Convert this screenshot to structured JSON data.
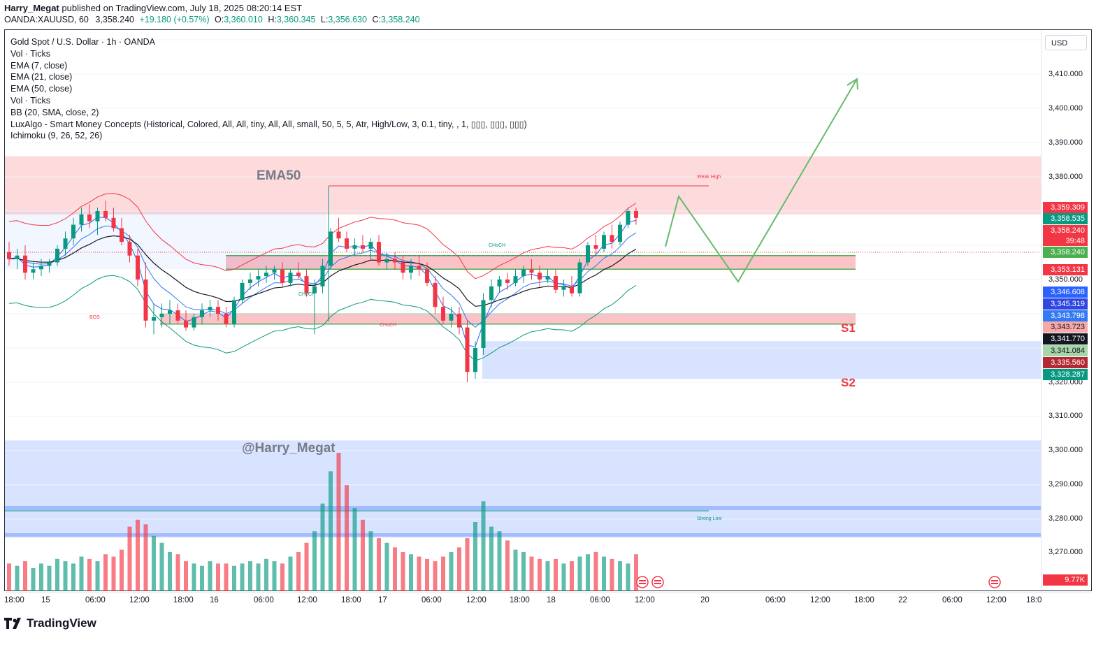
{
  "header": {
    "author": "Harry_Megat",
    "published_text": " published on TradingView.com, July 18, 2025 08:20:14 EST",
    "symbol": "OANDA:XAUUSD, 60",
    "last": "3,358.240",
    "change": "+19.180 (+0.57%)",
    "open_label": "O:",
    "open": "3,360.010",
    "high_label": "H:",
    "high": "3,360.345",
    "low_label": "L:",
    "low": "3,356.630",
    "close_label": "C:",
    "close": "3,358.240"
  },
  "legend": {
    "title": "Gold Spot / U.S. Dollar · 1h · OANDA",
    "lines": [
      "Vol · Ticks",
      "EMA (7, close)",
      "EMA (21, close)",
      "EMA (50, close)",
      "Vol · Ticks",
      "BB (20, SMA, close, 2)",
      "LuxAlgo - Smart Money Concepts (Historical, Colored, All, All, tiny, All, All, small, 50, 5, 5, Atr, High/Low, 3, 0.1, tiny, , 1, ▯▯▯, ▯▯▯, ▯▯▯)",
      "Ichimoku (9, 26, 52, 26)"
    ]
  },
  "annotations": {
    "ema50": "EMA50",
    "watermark": "@Harry_Megat",
    "s1": "S1",
    "s2": "S2",
    "weak_high": "Weak High",
    "strong_low": "Strong Low",
    "choch1": "CHoCH",
    "choch2": "CHoCH",
    "choch3": "CHoCH",
    "bos": "BOS"
  },
  "axis": {
    "currency": "USD",
    "price_ticks": [
      "3,410.000",
      "3,400.000",
      "3,390.000",
      "3,380.000",
      "3,350.000",
      "3,320.000",
      "3,310.000",
      "3,300.000",
      "3,290.000",
      "3,280.000",
      "3,270.000"
    ],
    "time_ticks": [
      "18:00",
      "15",
      "06:00",
      "12:00",
      "18:00",
      "16",
      "06:00",
      "12:00",
      "18:00",
      "17",
      "06:00",
      "12:00",
      "18:00",
      "18",
      "06:00",
      "12:00",
      "20",
      "06:00",
      "12:00",
      "18:00",
      "22",
      "06:00",
      "12:00",
      "18:0"
    ]
  },
  "price_tags": [
    {
      "value": "3,359.309",
      "color": "#f23645"
    },
    {
      "value": "3,358.535",
      "color": "#089981"
    },
    {
      "value": "3,358.240",
      "color": "#f23645"
    },
    {
      "value": "39:48",
      "color": "#f23645"
    },
    {
      "value": "3,358.240",
      "color": "#4caf50"
    },
    {
      "value": "3,353.131",
      "color": "#f23645"
    },
    {
      "value": "3,346.608",
      "color": "#2962ff"
    },
    {
      "value": "3,345.319",
      "color": "#2f47e0"
    },
    {
      "value": "3,343.798",
      "color": "#3179f5"
    },
    {
      "value": "3,343.723",
      "color": "#f7a9a8"
    },
    {
      "value": "3,341.770",
      "color": "#131722"
    },
    {
      "value": "3,341.084",
      "color": "#a5d6a7"
    },
    {
      "value": "3,335.560",
      "color": "#b22833"
    },
    {
      "value": "3,328.287",
      "color": "#089981"
    },
    {
      "value": "9.77K",
      "color": "#f23645"
    }
  ],
  "footer": {
    "brand": "TradingView"
  },
  "chart_data": {
    "type": "candlestick",
    "y_range": [
      3305,
      3420
    ],
    "candles_ohlc": [
      [
        3348,
        3351,
        3344,
        3346
      ],
      [
        3346,
        3349,
        3343,
        3347
      ],
      [
        3347,
        3350,
        3340,
        3342
      ],
      [
        3342,
        3345,
        3340,
        3343
      ],
      [
        3343,
        3346,
        3341,
        3344
      ],
      [
        3344,
        3346,
        3342,
        3345
      ],
      [
        3345,
        3350,
        3344,
        3349
      ],
      [
        3349,
        3354,
        3347,
        3352
      ],
      [
        3352,
        3358,
        3350,
        3356
      ],
      [
        3356,
        3361,
        3354,
        3359
      ],
      [
        3359,
        3362,
        3355,
        3357
      ],
      [
        3357,
        3361,
        3353,
        3360
      ],
      [
        3360,
        3363,
        3357,
        3358
      ],
      [
        3358,
        3361,
        3354,
        3355
      ],
      [
        3355,
        3358,
        3350,
        3351
      ],
      [
        3351,
        3353,
        3345,
        3347
      ],
      [
        3347,
        3349,
        3338,
        3340
      ],
      [
        3340,
        3345,
        3326,
        3328
      ],
      [
        3328,
        3333,
        3324,
        3329
      ],
      [
        3329,
        3333,
        3326,
        3330
      ],
      [
        3330,
        3334,
        3327,
        3331
      ],
      [
        3331,
        3333,
        3327,
        3328
      ],
      [
        3328,
        3331,
        3325,
        3326
      ],
      [
        3326,
        3330,
        3325,
        3329
      ],
      [
        3329,
        3333,
        3327,
        3331
      ],
      [
        3331,
        3334,
        3329,
        3332
      ],
      [
        3332,
        3334,
        3328,
        3330
      ],
      [
        3330,
        3332,
        3326,
        3327
      ],
      [
        3327,
        3335,
        3326,
        3334
      ],
      [
        3334,
        3340,
        3333,
        3339
      ],
      [
        3339,
        3342,
        3337,
        3340
      ],
      [
        3340,
        3343,
        3338,
        3341
      ],
      [
        3341,
        3344,
        3339,
        3342
      ],
      [
        3342,
        3344,
        3340,
        3343
      ],
      [
        3343,
        3345,
        3338,
        3339
      ],
      [
        3339,
        3343,
        3338,
        3342
      ],
      [
        3342,
        3345,
        3340,
        3341
      ],
      [
        3341,
        3343,
        3335,
        3336
      ],
      [
        3336,
        3340,
        3324,
        3338
      ],
      [
        3338,
        3346,
        3336,
        3344
      ],
      [
        3344,
        3355,
        3343,
        3354
      ],
      [
        3354,
        3358,
        3351,
        3352
      ],
      [
        3352,
        3354,
        3348,
        3349
      ],
      [
        3349,
        3352,
        3347,
        3350
      ],
      [
        3350,
        3353,
        3348,
        3349
      ],
      [
        3349,
        3352,
        3346,
        3351
      ],
      [
        3351,
        3353,
        3344,
        3345
      ],
      [
        3345,
        3348,
        3343,
        3346
      ],
      [
        3346,
        3348,
        3343,
        3345
      ],
      [
        3345,
        3347,
        3340,
        3342
      ],
      [
        3342,
        3346,
        3340,
        3344
      ],
      [
        3344,
        3347,
        3341,
        3343
      ],
      [
        3343,
        3345,
        3338,
        3339
      ],
      [
        3339,
        3341,
        3330,
        3332
      ],
      [
        3332,
        3335,
        3327,
        3328
      ],
      [
        3328,
        3332,
        3326,
        3330
      ],
      [
        3330,
        3332,
        3324,
        3326
      ],
      [
        3326,
        3328,
        3310,
        3313
      ],
      [
        3313,
        3322,
        3311,
        3320
      ],
      [
        3320,
        3336,
        3318,
        3334
      ],
      [
        3334,
        3340,
        3332,
        3338
      ],
      [
        3338,
        3341,
        3336,
        3340
      ],
      [
        3340,
        3342,
        3337,
        3339
      ],
      [
        3339,
        3343,
        3338,
        3341
      ],
      [
        3341,
        3344,
        3339,
        3343
      ],
      [
        3343,
        3346,
        3340,
        3342
      ],
      [
        3342,
        3344,
        3338,
        3340
      ],
      [
        3340,
        3343,
        3339,
        3341
      ],
      [
        3341,
        3343,
        3336,
        3337
      ],
      [
        3337,
        3340,
        3335,
        3338
      ],
      [
        3338,
        3341,
        3335,
        3336
      ],
      [
        3336,
        3346,
        3335,
        3345
      ],
      [
        3345,
        3351,
        3344,
        3350
      ],
      [
        3350,
        3353,
        3347,
        3349
      ],
      [
        3349,
        3354,
        3348,
        3353
      ],
      [
        3353,
        3356,
        3349,
        3351
      ],
      [
        3351,
        3357,
        3350,
        3356
      ],
      [
        3356,
        3361,
        3355,
        3360
      ],
      [
        3360,
        3361,
        3356,
        3358
      ]
    ],
    "volume": [
      12,
      11,
      13,
      10,
      12,
      11,
      14,
      13,
      12,
      15,
      14,
      13,
      16,
      15,
      18,
      28,
      31,
      29,
      24,
      21,
      17,
      16,
      13,
      12,
      11,
      13,
      12,
      12,
      11,
      12,
      13,
      12,
      14,
      13,
      12,
      15,
      17,
      21,
      26,
      38,
      52,
      60,
      46,
      36,
      31,
      26,
      23,
      21,
      19,
      17,
      16,
      15,
      14,
      13,
      15,
      17,
      19,
      23,
      30,
      39,
      28,
      26,
      22,
      18,
      17,
      15,
      14,
      13,
      14,
      12,
      13,
      15,
      16,
      17,
      15,
      14,
      13,
      12,
      16
    ],
    "forecast_path": [
      [
        3347,
        "start"
      ],
      [
        3375,
        "peak"
      ],
      [
        3350,
        "pullback"
      ],
      [
        3408,
        "target"
      ]
    ],
    "zones": [
      {
        "name": "supply",
        "from": 3359,
        "to": 3376
      },
      {
        "name": "S1",
        "from": 3343,
        "to": 3347
      },
      {
        "name": "S2",
        "from": 3327,
        "to": 3330
      },
      {
        "name": "demand",
        "from": 3311,
        "to": 3322
      },
      {
        "name": "lower-demand",
        "from": 3265,
        "to": 3293
      }
    ]
  }
}
